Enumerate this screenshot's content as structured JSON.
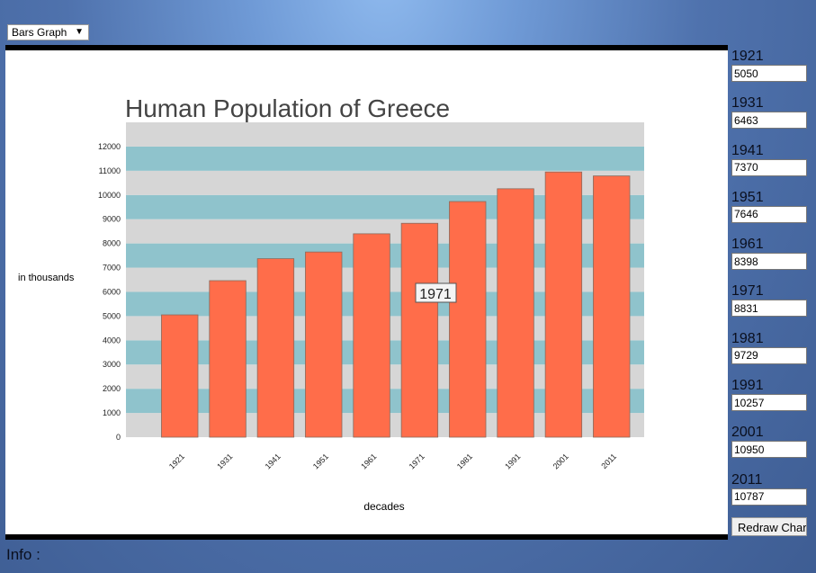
{
  "controls": {
    "graph_type_selected": "Bars Graph",
    "redraw_label": "Redraw Chart",
    "info_label": "Info :"
  },
  "inputs": [
    {
      "label": "1921",
      "value": "5050"
    },
    {
      "label": "1931",
      "value": "6463"
    },
    {
      "label": "1941",
      "value": "7370"
    },
    {
      "label": "1951",
      "value": "7646"
    },
    {
      "label": "1961",
      "value": "8398"
    },
    {
      "label": "1971",
      "value": "8831"
    },
    {
      "label": "1981",
      "value": "9729"
    },
    {
      "label": "1991",
      "value": "10257"
    },
    {
      "label": "2001",
      "value": "10950"
    },
    {
      "label": "2011",
      "value": "10787"
    }
  ],
  "chart_data": {
    "type": "bar",
    "title": "Human Population of Greece",
    "xlabel": "decades",
    "ylabel": "in thousands",
    "categories": [
      "1921",
      "1931",
      "1941",
      "1951",
      "1961",
      "1971",
      "1981",
      "1991",
      "2001",
      "2011"
    ],
    "values": [
      5050,
      6463,
      7370,
      7646,
      8398,
      8831,
      9729,
      10257,
      10950,
      10787
    ],
    "ylim": [
      0,
      13000
    ],
    "yticks": [
      0,
      1000,
      2000,
      3000,
      4000,
      5000,
      6000,
      7000,
      8000,
      9000,
      10000,
      11000,
      12000
    ],
    "bar_color": "#ff6d4a",
    "band_colors": [
      "#d6d6d6",
      "#8fc3cc"
    ],
    "tooltip": "1971",
    "legend": "none"
  }
}
